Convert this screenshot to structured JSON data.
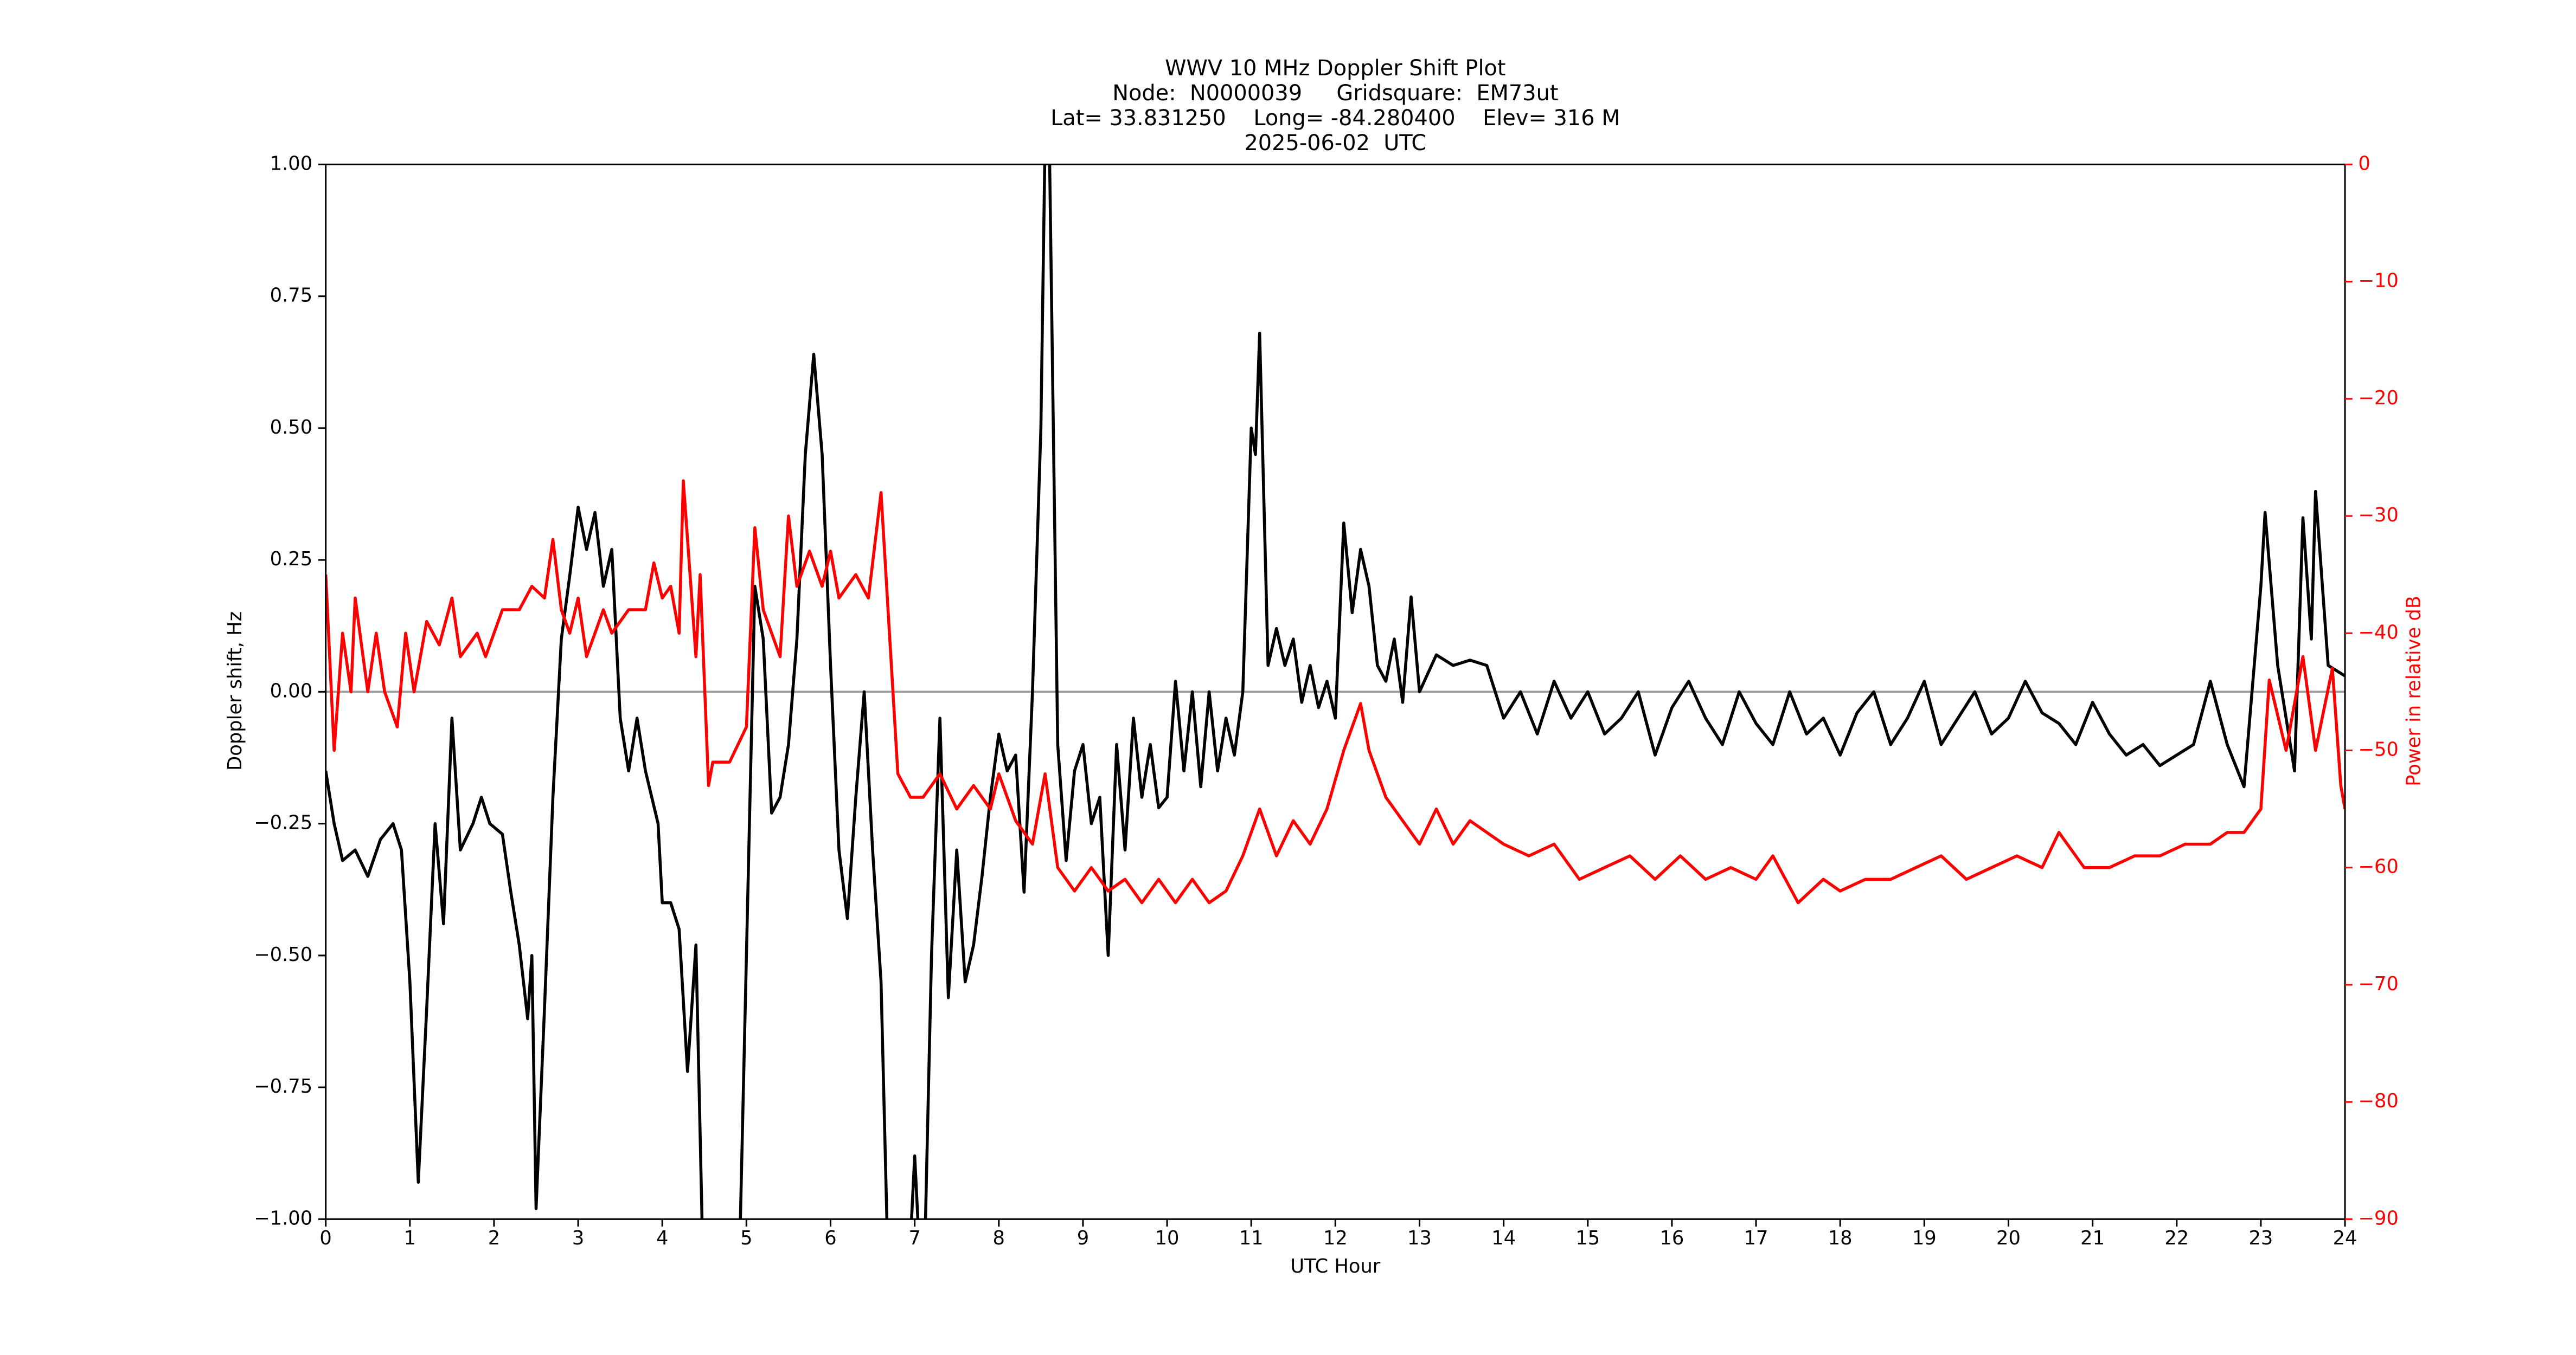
{
  "chart_data": {
    "type": "line",
    "title": [
      "WWV 10 MHz Doppler Shift Plot",
      "Node:  N0000039     Gridsquare:  EM73ut",
      "Lat= 33.831250    Long= -84.280400    Elev= 316 M",
      "2025-06-02  UTC"
    ],
    "x_label": "UTC Hour",
    "y_label": "Doppler shift, Hz",
    "y2_label": "Power in relative dB",
    "xlim": [
      0,
      24
    ],
    "xticks": [
      0,
      1,
      2,
      3,
      4,
      5,
      6,
      7,
      8,
      9,
      10,
      11,
      12,
      13,
      14,
      15,
      16,
      17,
      18,
      19,
      20,
      21,
      22,
      23,
      24
    ],
    "ylim": [
      -1,
      1
    ],
    "yticks": [
      {
        "value": -1,
        "label": "−1.00"
      },
      {
        "value": -0.75,
        "label": "−0.75"
      },
      {
        "value": -0.5,
        "label": "−0.50"
      },
      {
        "value": -0.25,
        "label": "−0.25"
      },
      {
        "value": 0,
        "label": "0.00"
      },
      {
        "value": 0.25,
        "label": "0.25"
      },
      {
        "value": 0.5,
        "label": "0.50"
      },
      {
        "value": 0.75,
        "label": "0.75"
      },
      {
        "value": 1,
        "label": "1.00"
      }
    ],
    "y2lim": [
      -90,
      0
    ],
    "y2ticks": [
      {
        "value": -90,
        "label": "−90"
      },
      {
        "value": -80,
        "label": "−80"
      },
      {
        "value": -70,
        "label": "−70"
      },
      {
        "value": -60,
        "label": "−60"
      },
      {
        "value": -50,
        "label": "−50"
      },
      {
        "value": -40,
        "label": "−40"
      },
      {
        "value": -30,
        "label": "−30"
      },
      {
        "value": -20,
        "label": "−20"
      },
      {
        "value": -10,
        "label": "−10"
      },
      0
    ],
    "y2_color": "#ff0000",
    "reference_line": 0,
    "reference_color": "#999999",
    "series": [
      {
        "color": "#000000",
        "x": [
          0,
          0.1,
          0.2,
          0.35,
          0.5,
          0.65,
          0.8,
          0.9,
          1.0,
          1.1,
          1.2,
          1.3,
          1.4,
          1.5,
          1.6,
          1.75,
          1.85,
          1.95,
          2.1,
          2.2,
          2.3,
          2.4,
          2.45,
          2.5,
          2.6,
          2.7,
          2.8,
          2.9,
          3.0,
          3.1,
          3.2,
          3.3,
          3.4,
          3.5,
          3.6,
          3.7,
          3.8,
          3.95,
          4.0,
          4.1,
          4.2,
          4.3,
          4.4,
          4.5,
          4.6,
          4.9,
          5.0,
          5.1,
          5.2,
          5.3,
          5.4,
          5.5,
          5.6,
          5.7,
          5.8,
          5.9,
          6.0,
          6.1,
          6.2,
          6.3,
          6.4,
          6.5,
          6.6,
          6.7,
          6.9,
          7.0,
          7.1,
          7.2,
          7.3,
          7.4,
          7.5,
          7.6,
          7.7,
          7.8,
          7.9,
          8.0,
          8.1,
          8.2,
          8.3,
          8.4,
          8.5,
          8.55,
          8.6,
          8.7,
          8.8,
          8.9,
          9.0,
          9.1,
          9.2,
          9.3,
          9.4,
          9.5,
          9.6,
          9.7,
          9.8,
          9.9,
          10.0,
          10.1,
          10.2,
          10.3,
          10.4,
          10.5,
          10.6,
          10.7,
          10.8,
          10.9,
          11.0,
          11.05,
          11.1,
          11.2,
          11.3,
          11.4,
          11.5,
          11.6,
          11.7,
          11.8,
          11.9,
          12.0,
          12.1,
          12.2,
          12.3,
          12.4,
          12.5,
          12.6,
          12.7,
          12.8,
          12.9,
          13.0,
          13.2,
          13.4,
          13.6,
          13.8,
          14.0,
          14.2,
          14.4,
          14.6,
          14.8,
          15.0,
          15.2,
          15.4,
          15.6,
          15.8,
          16.0,
          16.2,
          16.4,
          16.6,
          16.8,
          17.0,
          17.2,
          17.4,
          17.6,
          17.8,
          18.0,
          18.2,
          18.4,
          18.6,
          18.8,
          19.0,
          19.2,
          19.4,
          19.6,
          19.8,
          20.0,
          20.2,
          20.4,
          20.6,
          20.8,
          21.0,
          21.2,
          21.4,
          21.6,
          21.8,
          22.0,
          22.2,
          22.4,
          22.6,
          22.8,
          23.0,
          23.05,
          23.2,
          23.4,
          23.5,
          23.6,
          23.65,
          23.8,
          24.0
        ],
        "values": [
          -0.15,
          -0.25,
          -0.32,
          -0.3,
          -0.35,
          -0.28,
          -0.25,
          -0.3,
          -0.55,
          -0.93,
          -0.6,
          -0.25,
          -0.44,
          -0.05,
          -0.3,
          -0.25,
          -0.2,
          -0.25,
          -0.27,
          -0.38,
          -0.48,
          -0.62,
          -0.5,
          -0.98,
          -0.6,
          -0.2,
          0.1,
          0.22,
          0.35,
          0.27,
          0.34,
          0.2,
          0.27,
          -0.05,
          -0.15,
          -0.05,
          -0.15,
          -0.25,
          -0.4,
          -0.4,
          -0.45,
          -0.72,
          -0.48,
          -1.2,
          -1.2,
          -1.2,
          -0.5,
          0.2,
          0.1,
          -0.23,
          -0.2,
          -0.1,
          0.1,
          0.45,
          0.64,
          0.45,
          0.05,
          -0.3,
          -0.43,
          -0.2,
          0.0,
          -0.3,
          -0.55,
          -1.2,
          -1.2,
          -0.88,
          -1.2,
          -0.5,
          -0.05,
          -0.58,
          -0.3,
          -0.55,
          -0.48,
          -0.35,
          -0.2,
          -0.08,
          -0.15,
          -0.12,
          -0.38,
          0.0,
          0.5,
          1.05,
          1.05,
          -0.1,
          -0.32,
          -0.15,
          -0.1,
          -0.25,
          -0.2,
          -0.5,
          -0.1,
          -0.3,
          -0.05,
          -0.2,
          -0.1,
          -0.22,
          -0.2,
          0.02,
          -0.15,
          0.0,
          -0.18,
          0.0,
          -0.15,
          -0.05,
          -0.12,
          0.0,
          0.5,
          0.45,
          0.68,
          0.05,
          0.12,
          0.05,
          0.1,
          -0.02,
          0.05,
          -0.03,
          0.02,
          -0.05,
          0.32,
          0.15,
          0.27,
          0.2,
          0.05,
          0.02,
          0.1,
          -0.02,
          0.18,
          0.0,
          0.07,
          0.05,
          0.06,
          0.05,
          -0.05,
          0.0,
          -0.08,
          0.02,
          -0.05,
          0.0,
          -0.08,
          -0.05,
          0.0,
          -0.12,
          -0.03,
          0.02,
          -0.05,
          -0.1,
          0.0,
          -0.06,
          -0.1,
          0.0,
          -0.08,
          -0.05,
          -0.12,
          -0.04,
          0.0,
          -0.1,
          -0.05,
          0.02,
          -0.1,
          -0.05,
          0.0,
          -0.08,
          -0.05,
          0.02,
          -0.04,
          -0.06,
          -0.1,
          -0.02,
          -0.08,
          -0.12,
          -0.1,
          -0.14,
          -0.12,
          -0.1,
          0.02,
          -0.1,
          -0.18,
          0.2,
          0.34,
          0.05,
          -0.15,
          0.33,
          0.1,
          0.38,
          0.05,
          0.03
        ]
      },
      {
        "color": "#ff0000",
        "axis": "y2",
        "x": [
          0,
          0.1,
          0.2,
          0.3,
          0.35,
          0.5,
          0.6,
          0.7,
          0.85,
          0.95,
          1.05,
          1.2,
          1.35,
          1.5,
          1.6,
          1.8,
          1.9,
          2.1,
          2.3,
          2.45,
          2.6,
          2.7,
          2.8,
          2.9,
          3.0,
          3.1,
          3.3,
          3.4,
          3.6,
          3.8,
          3.9,
          4.0,
          4.1,
          4.2,
          4.25,
          4.4,
          4.45,
          4.55,
          4.6,
          4.8,
          5.0,
          5.1,
          5.2,
          5.4,
          5.5,
          5.6,
          5.75,
          5.9,
          6.0,
          6.1,
          6.3,
          6.45,
          6.6,
          6.7,
          6.8,
          6.95,
          7.1,
          7.3,
          7.5,
          7.7,
          7.9,
          8.0,
          8.2,
          8.4,
          8.55,
          8.7,
          8.9,
          9.1,
          9.3,
          9.5,
          9.7,
          9.9,
          10.1,
          10.3,
          10.5,
          10.7,
          10.9,
          11.1,
          11.3,
          11.5,
          11.7,
          11.9,
          12.1,
          12.3,
          12.4,
          12.6,
          12.8,
          13.0,
          13.2,
          13.4,
          13.6,
          13.8,
          14.0,
          14.3,
          14.6,
          14.9,
          15.2,
          15.5,
          15.8,
          16.1,
          16.4,
          16.7,
          17.0,
          17.2,
          17.5,
          17.8,
          18.0,
          18.3,
          18.6,
          18.9,
          19.2,
          19.5,
          19.8,
          20.1,
          20.4,
          20.6,
          20.9,
          21.2,
          21.5,
          21.8,
          22.1,
          22.4,
          22.6,
          22.8,
          23.0,
          23.1,
          23.3,
          23.5,
          23.65,
          23.85,
          23.95,
          24.0
        ],
        "values": [
          -35,
          -50,
          -40,
          -45,
          -37,
          -45,
          -40,
          -45,
          -48,
          -40,
          -45,
          -39,
          -41,
          -37,
          -42,
          -40,
          -42,
          -38,
          -38,
          -36,
          -37,
          -32,
          -38,
          -40,
          -37,
          -42,
          -38,
          -40,
          -38,
          -38,
          -34,
          -37,
          -36,
          -40,
          -27,
          -42,
          -35,
          -53,
          -51,
          -51,
          -48,
          -31,
          -38,
          -42,
          -30,
          -36,
          -33,
          -36,
          -33,
          -37,
          -35,
          -37,
          -28,
          -40,
          -52,
          -54,
          -54,
          -52,
          -55,
          -53,
          -55,
          -52,
          -56,
          -58,
          -52,
          -60,
          -62,
          -60,
          -62,
          -61,
          -63,
          -61,
          -63,
          -61,
          -63,
          -62,
          -59,
          -55,
          -59,
          -56,
          -58,
          -55,
          -50,
          -46,
          -50,
          -54,
          -56,
          -58,
          -55,
          -58,
          -56,
          -57,
          -58,
          -59,
          -58,
          -61,
          -60,
          -59,
          -61,
          -59,
          -61,
          -60,
          -61,
          -59,
          -63,
          -61,
          -62,
          -61,
          -61,
          -60,
          -59,
          -61,
          -60,
          -59,
          -60,
          -57,
          -60,
          -60,
          -59,
          -59,
          -58,
          -58,
          -57,
          -57,
          -55,
          -44,
          -50,
          -42,
          -50,
          -43,
          -53,
          -55
        ]
      }
    ]
  }
}
